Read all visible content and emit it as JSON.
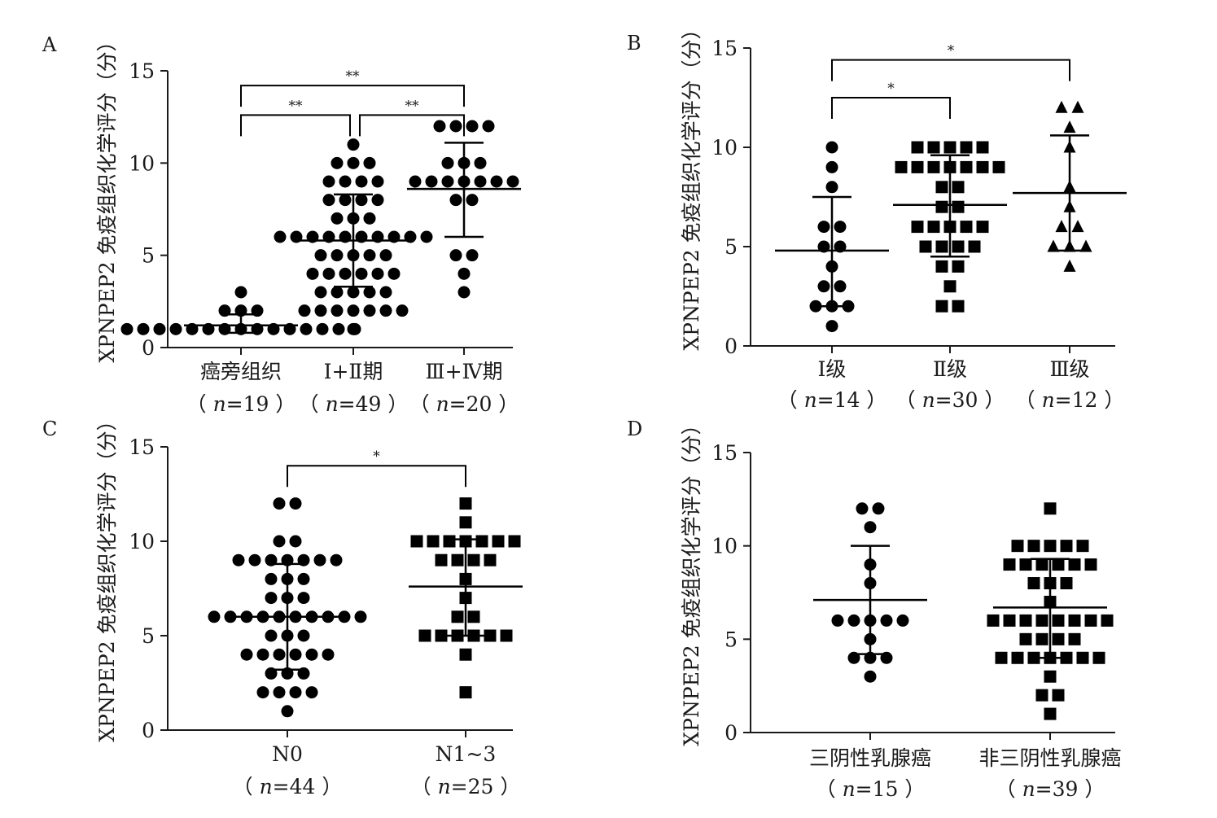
{
  "chart_data": [
    {
      "panel": "A",
      "type": "scatter",
      "ylabel": "XPNPEP2 免疫组织化学评分（分）",
      "ylim": [
        0,
        15
      ],
      "yticks": [
        "0",
        "5",
        "10",
        "15"
      ],
      "marker": "circle",
      "groups": [
        {
          "label": "癌旁组织",
          "n_text": "n=19",
          "mean": 1.2,
          "sd_low": 0.8,
          "sd_high": 1.8,
          "values": [
            3,
            2,
            2,
            2,
            1,
            1,
            1,
            1,
            1,
            1,
            1,
            1,
            1,
            1,
            1,
            1,
            1,
            1,
            1
          ],
          "marker": "circle"
        },
        {
          "label": "Ⅰ+Ⅱ期",
          "n_text": "n=49",
          "mean": 5.8,
          "sd_low": 3.3,
          "sd_high": 8.3,
          "values": [
            11,
            10,
            10,
            10,
            9,
            9,
            9,
            9,
            8,
            8,
            8,
            8,
            7,
            7,
            7,
            6,
            6,
            6,
            6,
            6,
            6,
            6,
            6,
            6,
            6,
            5,
            5,
            5,
            5,
            5,
            4,
            4,
            4,
            4,
            4,
            4,
            3,
            3,
            3,
            3,
            3,
            2,
            2,
            2,
            2,
            2,
            2,
            2,
            1
          ],
          "marker": "circle"
        },
        {
          "label": "Ⅲ+Ⅳ期",
          "n_text": "n=20",
          "mean": 8.6,
          "sd_low": 6.0,
          "sd_high": 11.1,
          "values": [
            12,
            12,
            12,
            12,
            10,
            10,
            10,
            9,
            9,
            9,
            9,
            9,
            9,
            9,
            8,
            8,
            5,
            5,
            4,
            3
          ],
          "marker": "circle"
        }
      ],
      "comparisons": [
        {
          "from": 0,
          "to": 2,
          "y": 14.2,
          "label": "**"
        },
        {
          "from": 0,
          "to": 1,
          "y": 12.6,
          "label": "**"
        },
        {
          "from": 1,
          "to": 2,
          "y": 12.6,
          "label": "**"
        }
      ]
    },
    {
      "panel": "B",
      "type": "scatter",
      "ylabel": "XPNPEP2 免疫组织化学评分（分）",
      "ylim": [
        0,
        15
      ],
      "yticks": [
        "0",
        "5",
        "10",
        "15"
      ],
      "groups": [
        {
          "label": "Ⅰ级",
          "n_text": "n=14",
          "mean": 4.8,
          "sd_low": 2.0,
          "sd_high": 7.5,
          "values": [
            10,
            9,
            8,
            6,
            6,
            5,
            5,
            4,
            3,
            3,
            2,
            2,
            2,
            1
          ],
          "marker": "circle"
        },
        {
          "label": "Ⅱ级",
          "n_text": "n=30",
          "mean": 7.1,
          "sd_low": 4.5,
          "sd_high": 9.6,
          "values": [
            10,
            10,
            10,
            10,
            10,
            9,
            9,
            9,
            9,
            9,
            9,
            8,
            8,
            7,
            7,
            6,
            6,
            6,
            6,
            6,
            5,
            5,
            5,
            5,
            4,
            4,
            3,
            2,
            2,
            9
          ],
          "marker": "square"
        },
        {
          "label": "Ⅲ级",
          "n_text": "n=12",
          "mean": 7.7,
          "sd_low": 4.8,
          "sd_high": 10.6,
          "values": [
            12,
            12,
            11,
            10,
            8,
            7,
            6,
            6,
            5,
            5,
            5,
            4
          ],
          "marker": "triangle"
        }
      ],
      "comparisons": [
        {
          "from": 0,
          "to": 2,
          "y": 14.4,
          "label": "*"
        },
        {
          "from": 0,
          "to": 1,
          "y": 12.5,
          "label": "*"
        }
      ]
    },
    {
      "panel": "C",
      "type": "scatter",
      "ylabel": "XPNPEP2 免疫组织化学评分（分）",
      "ylim": [
        0,
        15
      ],
      "yticks": [
        "0",
        "5",
        "10",
        "15"
      ],
      "groups": [
        {
          "label": "N0",
          "n_text": "n=44",
          "mean": 6.0,
          "sd_low": 3.2,
          "sd_high": 8.8,
          "values": [
            12,
            12,
            10,
            10,
            9,
            9,
            9,
            9,
            9,
            9,
            9,
            8,
            8,
            8,
            7,
            7,
            7,
            6,
            6,
            6,
            6,
            6,
            6,
            6,
            6,
            6,
            6,
            5,
            5,
            5,
            4,
            4,
            4,
            4,
            4,
            4,
            3,
            3,
            3,
            2,
            2,
            2,
            2,
            1
          ],
          "marker": "circle"
        },
        {
          "label": "N1~3",
          "n_text": "n=25",
          "mean": 7.6,
          "sd_low": 5.0,
          "sd_high": 10.1,
          "values": [
            12,
            11,
            10,
            10,
            10,
            10,
            10,
            10,
            9,
            9,
            9,
            9,
            8,
            7,
            6,
            6,
            5,
            5,
            5,
            5,
            5,
            5,
            4,
            2,
            10
          ],
          "marker": "square"
        }
      ],
      "comparisons": [
        {
          "from": 0,
          "to": 1,
          "y": 14.0,
          "label": "*"
        }
      ]
    },
    {
      "panel": "D",
      "type": "scatter",
      "ylabel": "XPNPEP2 免疫组织化学评分（分）",
      "ylim": [
        0,
        15
      ],
      "yticks": [
        "0",
        "5",
        "10",
        "15"
      ],
      "groups": [
        {
          "label": "三阴性乳腺癌",
          "n_text": "n=15",
          "mean": 7.1,
          "sd_low": 4.2,
          "sd_high": 10.0,
          "values": [
            12,
            12,
            11,
            9,
            8,
            6,
            6,
            6,
            6,
            6,
            5,
            4,
            4,
            3,
            4
          ],
          "marker": "circle"
        },
        {
          "label": "非三阴性乳腺癌",
          "n_text": "n=39",
          "mean": 6.7,
          "sd_low": 4.0,
          "sd_high": 9.3,
          "values": [
            12,
            10,
            10,
            10,
            10,
            10,
            9,
            9,
            9,
            9,
            9,
            8,
            8,
            8,
            7,
            6,
            6,
            6,
            6,
            6,
            6,
            6,
            6,
            5,
            5,
            5,
            5,
            4,
            4,
            4,
            4,
            4,
            4,
            4,
            3,
            2,
            2,
            1,
            9
          ],
          "marker": "square"
        }
      ],
      "comparisons": []
    }
  ]
}
